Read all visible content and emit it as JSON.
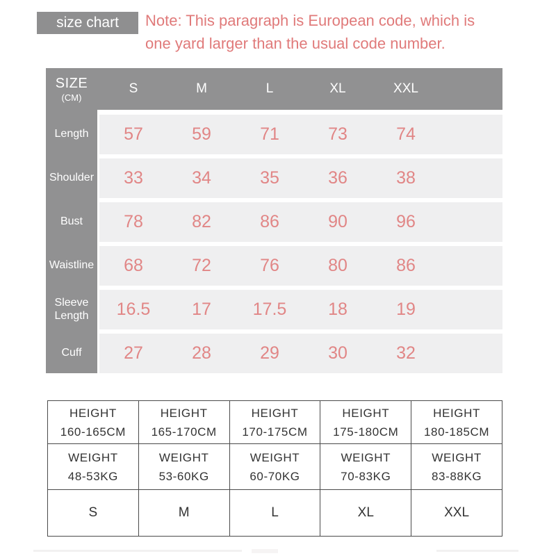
{
  "badge": {
    "label": "size chart"
  },
  "note": {
    "lines": [
      "Note: This paragraph is European code, which is",
      "one yard larger than the usual code number."
    ]
  },
  "size_table": {
    "header": {
      "title": "SIZE",
      "unit": "(CM)",
      "columns": [
        "S",
        "M",
        "L",
        "XL",
        "XXL"
      ]
    },
    "rows": [
      {
        "label": "Length",
        "values": [
          "57",
          "59",
          "71",
          "73",
          "74"
        ]
      },
      {
        "label": "Shoulder",
        "values": [
          "33",
          "34",
          "35",
          "36",
          "38"
        ]
      },
      {
        "label": "Bust",
        "values": [
          "78",
          "82",
          "86",
          "90",
          "96"
        ]
      },
      {
        "label": "Waistline",
        "values": [
          "68",
          "72",
          "76",
          "80",
          "86"
        ]
      },
      {
        "label": "Sleeve Length",
        "values": [
          "16.5",
          "17",
          "17.5",
          "18",
          "19"
        ]
      },
      {
        "label": "Cuff",
        "values": [
          "27",
          "28",
          "29",
          "30",
          "32"
        ]
      }
    ]
  },
  "fit_table": {
    "height_row": [
      {
        "label": "HEIGHT",
        "value": "160-165CM"
      },
      {
        "label": "HEIGHT",
        "value": "165-170CM"
      },
      {
        "label": "HEIGHT",
        "value": "170-175CM"
      },
      {
        "label": "HEIGHT",
        "value": "175-180CM"
      },
      {
        "label": "HEIGHT",
        "value": "180-185CM"
      }
    ],
    "weight_row": [
      {
        "label": "WEIGHT",
        "value": "48-53KG"
      },
      {
        "label": "WEIGHT",
        "value": "53-60KG"
      },
      {
        "label": "WEIGHT",
        "value": "60-70KG"
      },
      {
        "label": "WEIGHT",
        "value": "70-83KG"
      },
      {
        "label": "WEIGHT",
        "value": "83-88KG"
      }
    ],
    "size_row": [
      "S",
      "M",
      "L",
      "XL",
      "XXL"
    ]
  },
  "colors": {
    "header_gray": "#919192",
    "badge_gray": "#8f8f90",
    "row_band_gray": "#efeff0",
    "accent_salmon": "#e18686",
    "note_salmon": "#e07a7a",
    "table_border": "#4a4a4a"
  }
}
